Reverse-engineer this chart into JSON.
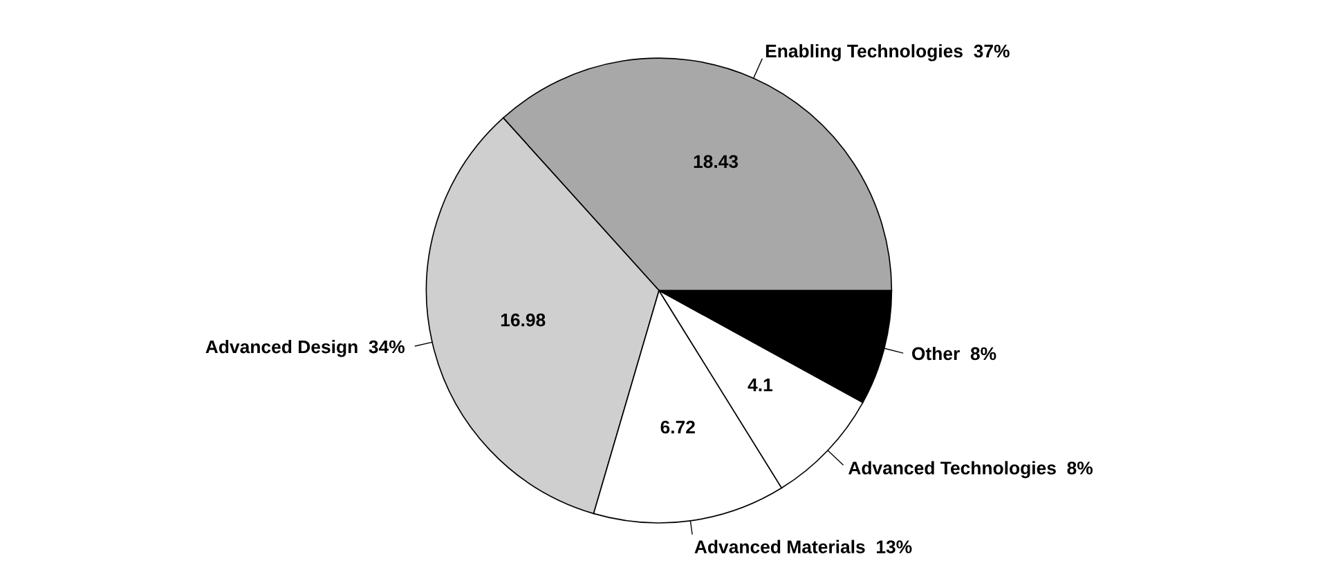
{
  "chart_data": {
    "type": "pie",
    "categories": [
      "Enabling Technologies  37%",
      "Advanced Design  34%",
      "Advanced Materials  13%",
      "Advanced Technologies  8%",
      "Other  8%"
    ],
    "values": [
      18.43,
      16.98,
      6.72,
      4.1,
      4.02
    ],
    "value_labels": [
      "18.43",
      "16.98",
      "6.72",
      "4.1",
      null
    ],
    "colors": [
      "#a8a8a8",
      "#cfcfcf",
      "#ffffff",
      "#ffffff",
      "#000000"
    ]
  }
}
